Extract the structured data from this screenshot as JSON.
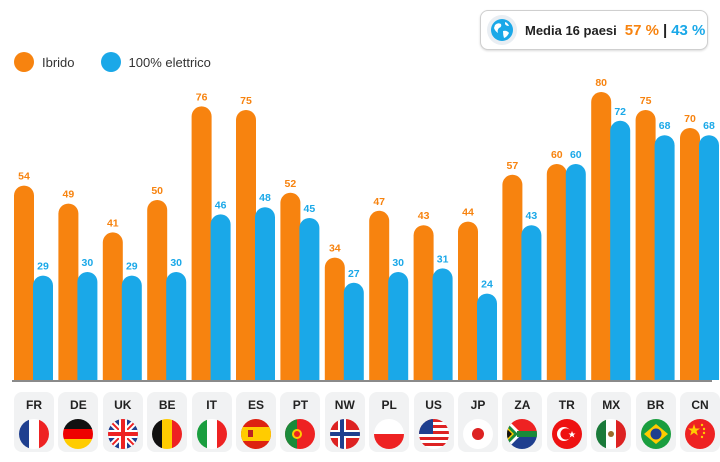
{
  "legend": {
    "hybrid": "Ibrido",
    "electric": "100% elettrico"
  },
  "average": {
    "label": "Media 16 paesi",
    "hybrid": "57 %",
    "separator": "|",
    "electric": "43 %"
  },
  "colors": {
    "hybrid": "#F7830F",
    "electric": "#1AA8E8",
    "axis": "#444444"
  },
  "chart_data": {
    "type": "bar",
    "title": "",
    "xlabel": "",
    "ylabel": "",
    "ylim": [
      0,
      100
    ],
    "categories": [
      "FR",
      "DE",
      "UK",
      "BE",
      "IT",
      "ES",
      "PT",
      "NW",
      "PL",
      "US",
      "JP",
      "ZA",
      "TR",
      "MX",
      "BR",
      "CN"
    ],
    "series": [
      {
        "name": "Ibrido",
        "values": [
          54,
          49,
          41,
          50,
          76,
          75,
          52,
          34,
          47,
          43,
          44,
          57,
          60,
          80,
          75,
          70
        ]
      },
      {
        "name": "100% elettrico",
        "values": [
          29,
          30,
          29,
          30,
          46,
          48,
          45,
          27,
          30,
          31,
          24,
          43,
          60,
          72,
          68,
          68
        ]
      }
    ]
  },
  "flags": [
    {
      "code": "FR",
      "icon": "flag-france-icon"
    },
    {
      "code": "DE",
      "icon": "flag-germany-icon"
    },
    {
      "code": "UK",
      "icon": "flag-uk-icon"
    },
    {
      "code": "BE",
      "icon": "flag-belgium-icon"
    },
    {
      "code": "IT",
      "icon": "flag-italy-icon"
    },
    {
      "code": "ES",
      "icon": "flag-spain-icon"
    },
    {
      "code": "PT",
      "icon": "flag-portugal-icon"
    },
    {
      "code": "NW",
      "icon": "flag-norway-icon"
    },
    {
      "code": "PL",
      "icon": "flag-poland-icon"
    },
    {
      "code": "US",
      "icon": "flag-usa-icon"
    },
    {
      "code": "JP",
      "icon": "flag-japan-icon"
    },
    {
      "code": "ZA",
      "icon": "flag-south-africa-icon"
    },
    {
      "code": "TR",
      "icon": "flag-turkey-icon"
    },
    {
      "code": "MX",
      "icon": "flag-mexico-icon"
    },
    {
      "code": "BR",
      "icon": "flag-brazil-icon"
    },
    {
      "code": "CN",
      "icon": "flag-china-icon"
    }
  ]
}
